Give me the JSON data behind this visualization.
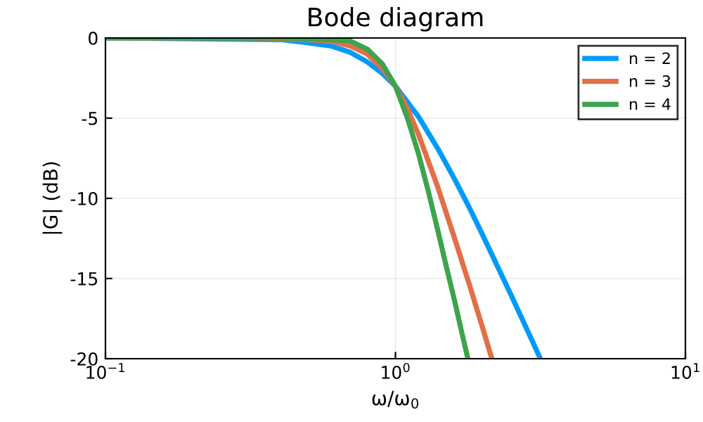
{
  "chart_data": {
    "type": "line",
    "title": "Bode diagram",
    "xlabel": "ω/ω$_{0}$",
    "ylabel": "|G| (dB)",
    "log": "x",
    "xlim": [
      0.1,
      10
    ],
    "ylim": [
      -20,
      0
    ],
    "xticks": [
      {
        "value": 0.1,
        "label": "10$^{−1}$"
      },
      {
        "value": 1,
        "label": "10$^{0}$"
      },
      {
        "value": 10,
        "label": "10$^{1}$"
      }
    ],
    "yticks": [
      -20,
      -15,
      -10,
      -5,
      0
    ],
    "grid": true,
    "legend": "top right",
    "line_style": "solid",
    "series": [
      {
        "name": "n = 2",
        "color": "#009af9",
        "x": [
          0.1,
          0.4,
          0.5,
          0.6,
          0.7,
          0.8,
          0.9,
          1.0,
          1.2,
          1.4,
          1.6,
          1.8,
          2.0,
          2.5,
          3.0,
          3.16
        ],
        "values": [
          0.0,
          -0.1,
          -0.3,
          -0.5,
          -0.9,
          -1.5,
          -2.2,
          -3.0,
          -4.9,
          -6.9,
          -8.8,
          -10.6,
          -12.3,
          -16.0,
          -19.1,
          -20.0
        ]
      },
      {
        "name": "n = 3",
        "color": "#e26f46",
        "x": [
          0.1,
          0.3,
          0.5,
          0.6,
          0.7,
          0.8,
          0.9,
          1.0,
          1.1,
          1.2,
          1.4,
          1.6,
          1.8,
          2.0,
          2.15
        ],
        "values": [
          0.0,
          0.0,
          -0.1,
          -0.2,
          -0.5,
          -1.0,
          -1.9,
          -3.0,
          -4.4,
          -6.0,
          -9.3,
          -12.5,
          -15.4,
          -18.1,
          -20.0
        ]
      },
      {
        "name": "n = 4",
        "color": "#3da44d",
        "x": [
          0.1,
          0.4,
          0.6,
          0.7,
          0.8,
          0.9,
          1.0,
          1.1,
          1.2,
          1.3,
          1.4,
          1.5,
          1.6,
          1.7,
          1.778
        ],
        "values": [
          0.0,
          0.0,
          -0.1,
          -0.2,
          -0.7,
          -1.6,
          -3.0,
          -5.0,
          -7.2,
          -9.6,
          -12.0,
          -14.3,
          -16.4,
          -18.5,
          -20.0
        ]
      }
    ]
  }
}
